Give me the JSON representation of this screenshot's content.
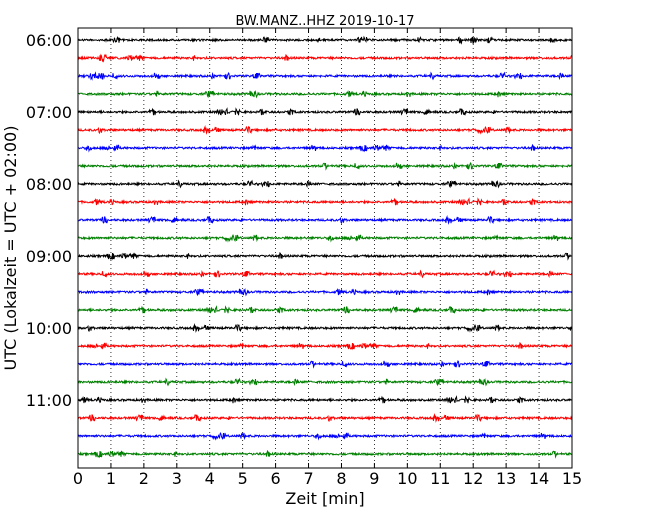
{
  "chart_data": {
    "type": "line",
    "title": "BW.MANZ..HHZ 2019-10-17",
    "xlabel": "Zeit  [min]",
    "ylabel": "UTC (Lokalzeit = UTC + 02:00)",
    "xlim": [
      0,
      15
    ],
    "x_ticks": [
      0,
      1,
      2,
      3,
      4,
      5,
      6,
      7,
      8,
      9,
      10,
      11,
      12,
      13,
      14,
      15
    ],
    "y_tick_labels": [
      "06:00",
      "07:00",
      "08:00",
      "09:00",
      "10:00",
      "11:00"
    ],
    "traces_per_hour": 4,
    "minutes_per_trace": 15,
    "vertical_grid": "dotted",
    "trace_colors": [
      "#000000",
      "#ff0000",
      "#0000ff",
      "#008000"
    ],
    "traces": [
      {
        "start": "06:00",
        "color": "#000000"
      },
      {
        "start": "06:15",
        "color": "#ff0000"
      },
      {
        "start": "06:30",
        "color": "#0000ff"
      },
      {
        "start": "06:45",
        "color": "#008000"
      },
      {
        "start": "07:00",
        "color": "#000000"
      },
      {
        "start": "07:15",
        "color": "#ff0000"
      },
      {
        "start": "07:30",
        "color": "#0000ff"
      },
      {
        "start": "07:45",
        "color": "#008000"
      },
      {
        "start": "08:00",
        "color": "#000000"
      },
      {
        "start": "08:15",
        "color": "#ff0000"
      },
      {
        "start": "08:30",
        "color": "#0000ff"
      },
      {
        "start": "08:45",
        "color": "#008000"
      },
      {
        "start": "09:00",
        "color": "#000000"
      },
      {
        "start": "09:15",
        "color": "#ff0000"
      },
      {
        "start": "09:30",
        "color": "#0000ff"
      },
      {
        "start": "09:45",
        "color": "#008000"
      },
      {
        "start": "10:00",
        "color": "#000000"
      },
      {
        "start": "10:15",
        "color": "#ff0000"
      },
      {
        "start": "10:30",
        "color": "#0000ff"
      },
      {
        "start": "10:45",
        "color": "#008000"
      },
      {
        "start": "11:00",
        "color": "#000000"
      },
      {
        "start": "11:15",
        "color": "#ff0000"
      },
      {
        "start": "11:30",
        "color": "#0000ff"
      },
      {
        "start": "11:45",
        "color": "#008000"
      }
    ]
  }
}
